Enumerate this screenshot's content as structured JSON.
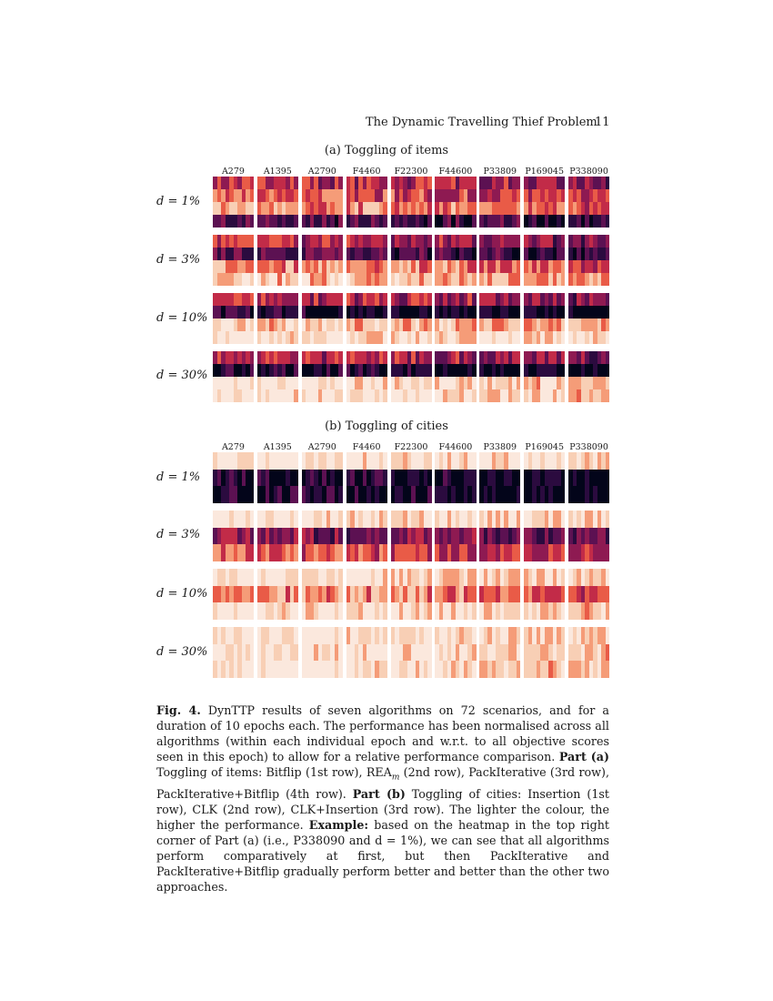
{
  "header": {
    "title": "The Dynamic Travelling Thief Problem",
    "page_number": "11"
  },
  "part_a": {
    "title": "(a) Toggling of items",
    "columns": [
      "A279",
      "A1395",
      "A2790",
      "F4460",
      "F22300",
      "F44600",
      "P33809",
      "P169045",
      "P338090"
    ],
    "rows": [
      "d = 1%",
      "d = 3%",
      "d = 10%",
      "d = 30%"
    ]
  },
  "part_b": {
    "title": "(b) Toggling of cities",
    "columns": [
      "A279",
      "A1395",
      "A2790",
      "F4460",
      "F22300",
      "F44600",
      "P33809",
      "P169045",
      "P338090"
    ],
    "rows": [
      "d = 1%",
      "d = 3%",
      "d = 10%",
      "d = 30%"
    ]
  },
  "caption": {
    "label": "Fig. 4.",
    "p1": " DynTTP results of seven algorithms on 72 scenarios, and for a duration of 10 epochs each. The performance has been normalised across all algorithms (within each individual epoch and w.r.t. to all objective scores seen in this epoch) to allow for a relative performance comparison. ",
    "part_a_label": "Part (a)",
    "p2": " Toggling of items: Bitflip (1st row), REA",
    "p2_sub": "m",
    "p3": " (2nd row), PackIterative (3rd row), PackIterative+Bitflip (4th row). ",
    "part_b_label": "Part (b)",
    "p4": " Toggling of cities: Insertion (1st row), CLK (2nd row), CLK+Insertion (3rd row). The lighter the colour, the higher the performance. ",
    "example_label": "Example:",
    "p5": " based on the heatmap in the top right corner of Part (a) (i.e., P338090 and d = 1%), we can see that all algorithms perform comparatively at first, but then PackIterative and PackIterative+Bitflip gradually perform better and better than the other two approaches."
  },
  "colors": {
    "scale": [
      "#03051a",
      "#2b0b3f",
      "#5c1152",
      "#8e1a52",
      "#c22b48",
      "#e95b47",
      "#f59c78",
      "#f8cfb5",
      "#fbe8dd"
    ]
  }
}
